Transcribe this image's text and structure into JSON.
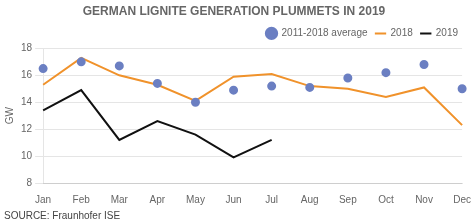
{
  "chart_data": {
    "type": "line",
    "title": "GERMAN LIGNITE GENERATION PLUMMETS IN 2019",
    "y_label": "GW",
    "annotations": [
      "SOURCE: Fraunhofer ISE"
    ],
    "categories": [
      "Jan",
      "Feb",
      "Mar",
      "Apr",
      "May",
      "Jun",
      "Jul",
      "Aug",
      "Sep",
      "Oct",
      "Nov",
      "Dec"
    ],
    "series": [
      {
        "name": "2011-2018 average",
        "type": "scatter",
        "marker": "circle",
        "color": "#6b7fc2",
        "values": [
          16.5,
          17.0,
          16.7,
          15.4,
          14.0,
          14.9,
          15.2,
          15.1,
          15.8,
          16.2,
          16.8,
          15.0
        ]
      },
      {
        "name": "2018",
        "type": "line",
        "color": "#f0922b",
        "values": [
          15.3,
          17.3,
          16.0,
          15.3,
          14.1,
          15.9,
          16.1,
          15.2,
          15.0,
          14.4,
          15.1,
          12.3
        ]
      },
      {
        "name": "2019",
        "type": "line",
        "color": "#111111",
        "values": [
          13.4,
          14.9,
          11.2,
          12.6,
          11.6,
          9.9,
          11.2,
          null,
          null,
          null,
          null,
          null
        ]
      }
    ],
    "ylim": [
      8,
      18
    ],
    "yticks": [
      8,
      10,
      12,
      14,
      16,
      18
    ],
    "grid": true,
    "legend": "upper right"
  }
}
